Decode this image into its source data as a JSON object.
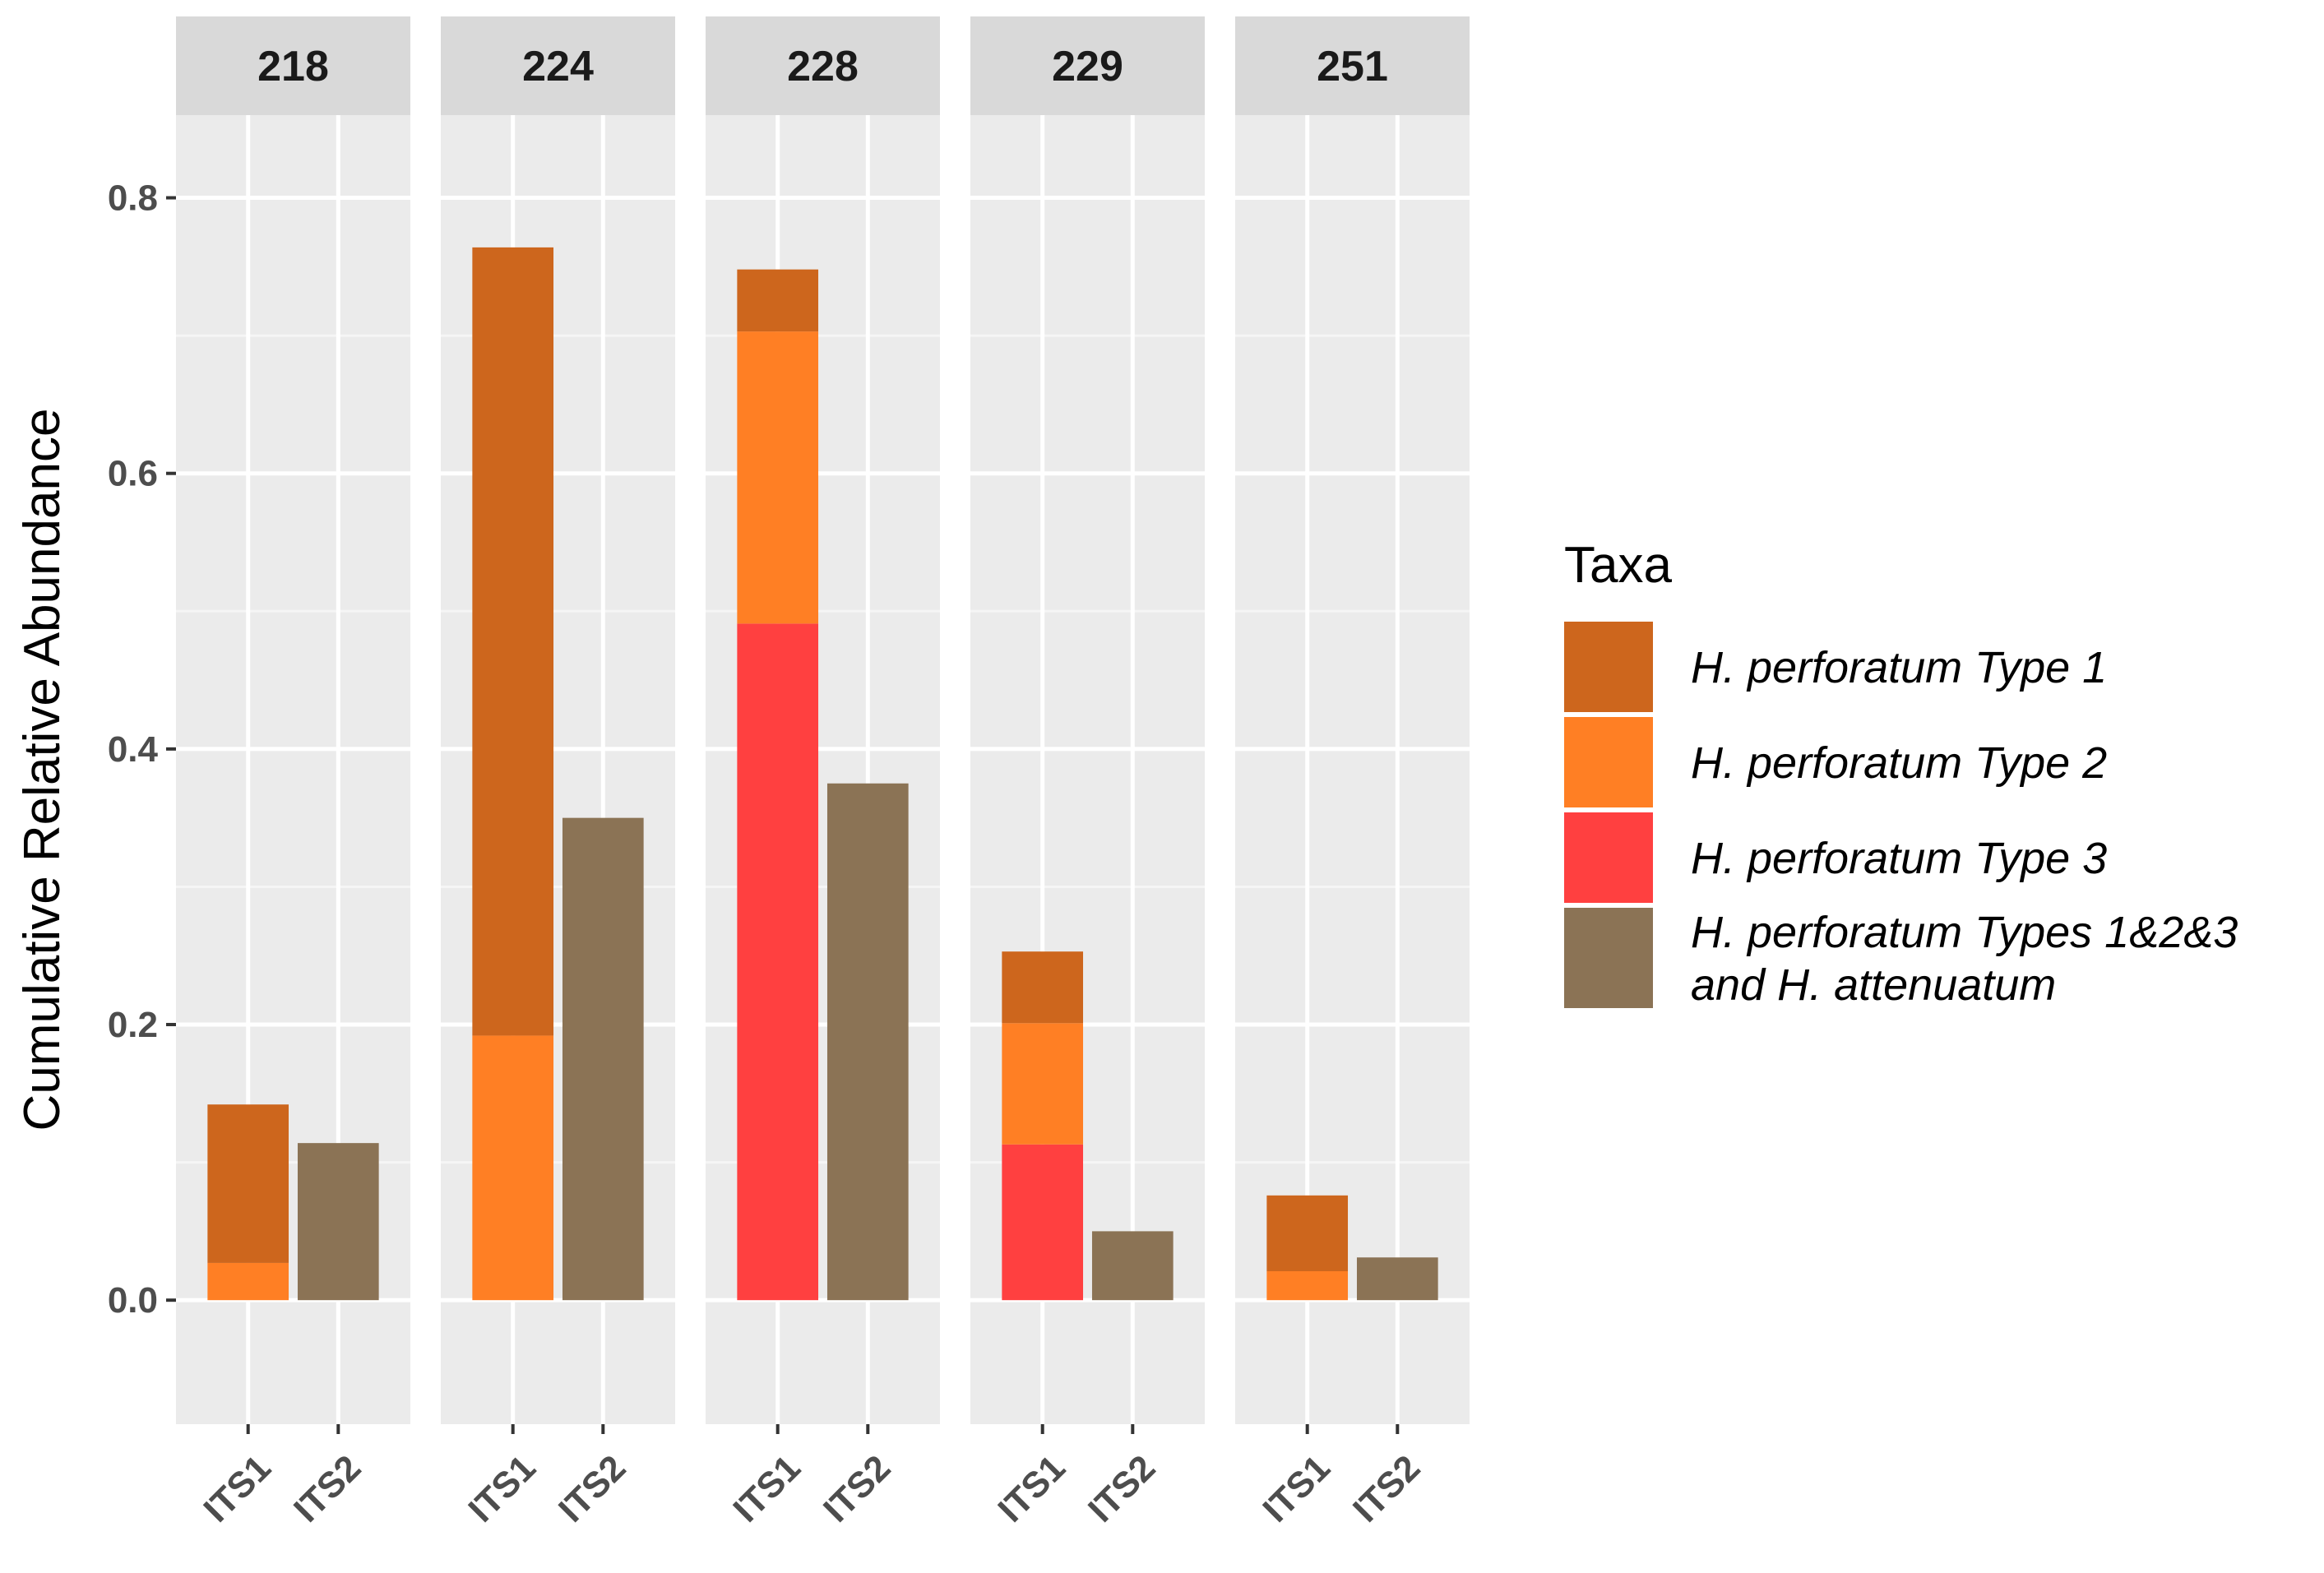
{
  "chart_data": {
    "type": "bar",
    "stacked": true,
    "faceted": true,
    "title": "",
    "xlabel": "",
    "ylabel": "Cumulative Relative Abundance",
    "ylim": [
      -0.09,
      0.86
    ],
    "yticks": [
      0.0,
      0.2,
      0.4,
      0.6,
      0.8
    ],
    "ytick_labels": [
      "0.0",
      "0.2",
      "0.4",
      "0.6",
      "0.8"
    ],
    "grid": true,
    "facets": [
      "218",
      "224",
      "228",
      "229",
      "251"
    ],
    "categories": [
      "ITS1",
      "ITS2"
    ],
    "series": [
      {
        "name": "H. perforatum Type 3",
        "color": "#FF4040",
        "values": [
          [
            0.0,
            0.0
          ],
          [
            0.0,
            0.0
          ],
          [
            0.491,
            0.0
          ],
          [
            0.113,
            0.0
          ],
          [
            0.0,
            0.0
          ]
        ]
      },
      {
        "name": "H. perforatum Type 2",
        "color": "#FF7F24",
        "values": [
          [
            0.027,
            0.0
          ],
          [
            0.192,
            0.0
          ],
          [
            0.212,
            0.0
          ],
          [
            0.088,
            0.0
          ],
          [
            0.021,
            0.0
          ]
        ]
      },
      {
        "name": "H. perforatum Type 1",
        "color": "#CD661D",
        "values": [
          [
            0.115,
            0.0
          ],
          [
            0.572,
            0.0
          ],
          [
            0.045,
            0.0
          ],
          [
            0.052,
            0.0
          ],
          [
            0.055,
            0.0
          ]
        ]
      },
      {
        "name": "H. perforatum Types 1&2&3 and H. attenuatum",
        "color": "#8B7355",
        "values": [
          [
            0.0,
            0.114
          ],
          [
            0.0,
            0.35
          ],
          [
            0.0,
            0.375
          ],
          [
            0.0,
            0.05
          ],
          [
            0.0,
            0.031
          ]
        ]
      }
    ],
    "legend": {
      "title": "Taxa",
      "position": "right",
      "items": [
        {
          "lines": [
            "H. perforatum Type 1"
          ],
          "color": "#CD661D"
        },
        {
          "lines": [
            "H. perforatum Type 2"
          ],
          "color": "#FF7F24"
        },
        {
          "lines": [
            "H. perforatum Type 3"
          ],
          "color": "#FF4040"
        },
        {
          "lines": [
            "H. perforatum Types 1&2&3",
            "and H. attenuatum"
          ],
          "color": "#8B7355"
        }
      ]
    }
  }
}
